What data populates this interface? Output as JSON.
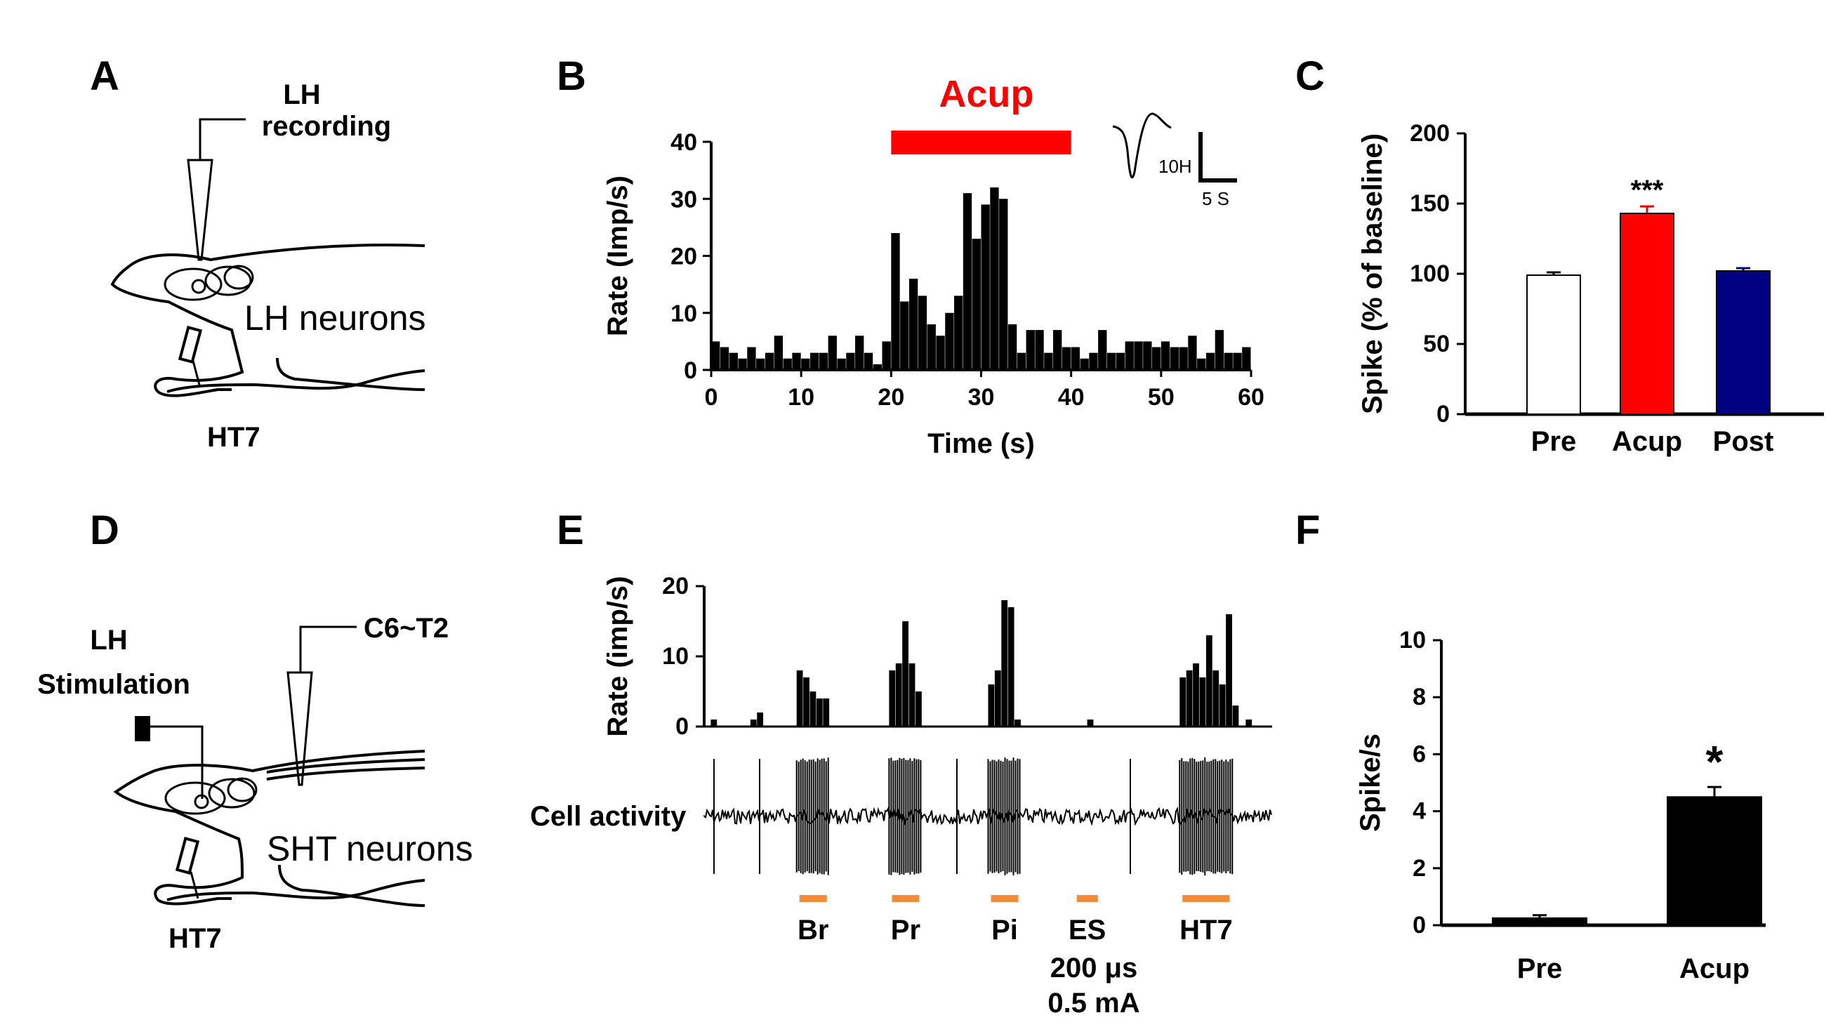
{
  "panels": {
    "A": {
      "letter": "A",
      "electrode_label_line1": "LH",
      "electrode_label_line2": "recording",
      "region_label": "LH neurons",
      "point_label": "HT7"
    },
    "B": {
      "letter": "B",
      "stim_label": "Acup",
      "scale_y": "10H",
      "scale_x": "5 S"
    },
    "C": {
      "letter": "C"
    },
    "D": {
      "letter": "D",
      "stim_label_line1": "LH",
      "stim_label_line2": "Stimulation",
      "electrode_label": "C6~T2",
      "region_label": "SHT neurons",
      "point_label": "HT7"
    },
    "E": {
      "letter": "E",
      "trace_label": "Cell activity",
      "param_line1": "200 μs",
      "param_line2": "0.5 mA"
    },
    "F": {
      "letter": "F"
    }
  },
  "chart_data": [
    {
      "id": "B",
      "type": "bar",
      "title": "",
      "xlabel": "Time (s)",
      "ylabel": "Rate (Imp/s)",
      "xlim": [
        0,
        60
      ],
      "ylim": [
        0,
        40
      ],
      "xticks": [
        "0",
        "10",
        "20",
        "30",
        "40",
        "50",
        "60"
      ],
      "yticks": [
        "0",
        "10",
        "20",
        "30",
        "40"
      ],
      "bin_width": 1,
      "stimulus": {
        "label": "Acup",
        "start": 20,
        "end": 40,
        "color": "#ff0000"
      },
      "values": [
        5,
        4,
        3,
        2,
        4,
        2,
        3,
        6,
        2,
        3,
        2,
        3,
        3,
        6,
        2,
        3,
        6,
        3,
        1,
        5,
        24,
        12,
        16,
        13,
        8,
        6,
        10,
        13,
        31,
        23,
        29,
        32,
        30,
        8,
        3,
        7,
        7,
        3,
        7,
        4,
        4,
        2,
        3,
        7,
        3,
        3,
        5,
        5,
        5,
        4,
        5,
        4,
        4,
        6,
        2,
        3,
        7,
        3,
        3,
        4
      ]
    },
    {
      "id": "C",
      "type": "bar",
      "title": "",
      "xlabel": "",
      "ylabel": "Spike (% of baseline)",
      "ylim": [
        0,
        200
      ],
      "yticks": [
        "0",
        "50",
        "100",
        "150",
        "200"
      ],
      "categories": [
        "Pre",
        "Acup",
        "Post"
      ],
      "values": [
        99,
        143,
        102
      ],
      "errors": [
        2,
        5,
        2
      ],
      "colors": [
        "#ffffff",
        "#ff0000",
        "#000080"
      ],
      "annotations": [
        {
          "category": "Acup",
          "text": "***"
        }
      ]
    },
    {
      "id": "E",
      "type": "bar",
      "title": "",
      "xlabel": "",
      "ylabel": "Rate (imp/s)",
      "ylim": [
        0,
        20
      ],
      "yticks": [
        "0",
        "10",
        "20"
      ],
      "bin_count": 86,
      "values": [
        0,
        1,
        0,
        0,
        0,
        0,
        0,
        1,
        2,
        0,
        0,
        0,
        0,
        0,
        8,
        7,
        5,
        4,
        4,
        0,
        0,
        0,
        0,
        0,
        0,
        0,
        0,
        0,
        8,
        9,
        15,
        9,
        5,
        0,
        0,
        0,
        0,
        0,
        0,
        0,
        0,
        0,
        0,
        6,
        8,
        18,
        17,
        1,
        0,
        0,
        0,
        0,
        0,
        0,
        0,
        0,
        0,
        0,
        1,
        0,
        0,
        0,
        0,
        0,
        0,
        0,
        0,
        0,
        0,
        0,
        0,
        0,
        7,
        8,
        9,
        7,
        13,
        8,
        6,
        16,
        3,
        0,
        1,
        0,
        0,
        0
      ],
      "stimuli": [
        {
          "label": "Br",
          "start_bin": 14,
          "end_bin": 19,
          "color": "#f28c3a"
        },
        {
          "label": "Pr",
          "start_bin": 28,
          "end_bin": 33,
          "color": "#f28c3a"
        },
        {
          "label": "Pi",
          "start_bin": 43,
          "end_bin": 48,
          "color": "#f28c3a"
        },
        {
          "label": "ES",
          "start_bin": 56,
          "end_bin": 60,
          "color": "#f28c3a"
        },
        {
          "label": "HT7",
          "start_bin": 72,
          "end_bin": 80,
          "color": "#f28c3a"
        }
      ]
    },
    {
      "id": "F",
      "type": "bar",
      "title": "",
      "xlabel": "",
      "ylabel": "Spike/s",
      "ylim": [
        0,
        10
      ],
      "yticks": [
        "0",
        "2",
        "4",
        "6",
        "8",
        "10"
      ],
      "categories": [
        "Pre",
        "Acup"
      ],
      "values": [
        0.25,
        4.5
      ],
      "errors": [
        0.1,
        0.35
      ],
      "colors": [
        "#000000",
        "#000000"
      ],
      "annotations": [
        {
          "category": "Acup",
          "text": "*"
        }
      ]
    }
  ]
}
